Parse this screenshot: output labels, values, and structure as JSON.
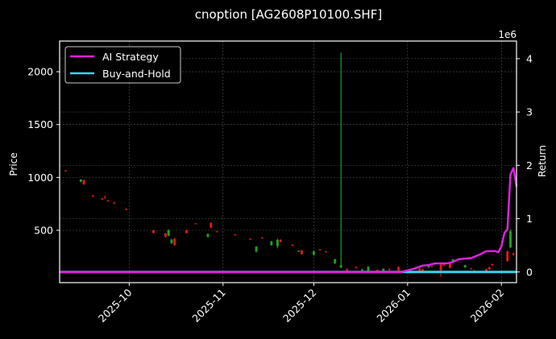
{
  "chart_data": {
    "type": "candlestick+line",
    "title": "cnoption [AG2608P10100.SHF]",
    "xlabel": "",
    "ylabel": "Price",
    "y2label": "Return",
    "y2_offset_label": "1e6",
    "x_ticks": [
      "2025-10",
      "2025-11",
      "2025-12",
      "2026-01",
      "2026-02"
    ],
    "y_ticks": [
      500,
      1000,
      1500,
      2000
    ],
    "y2_ticks": [
      0,
      1,
      2,
      3,
      4
    ],
    "ylim": [
      5,
      2290
    ],
    "y2lim": [
      -0.2,
      4.33
    ],
    "xlim": [
      "2025-09-08",
      "2026-02-06"
    ],
    "grid": true,
    "legend_position": "upper left",
    "legend": [
      {
        "label": "AI Strategy",
        "color": "#e020e0"
      },
      {
        "label": "Buy-and-Hold",
        "color": "#30d8e8"
      }
    ],
    "colors": {
      "background": "#000000",
      "up": "#1fa01f",
      "down": "#e01818",
      "ai_strategy": "#e020e0",
      "buy_and_hold": "#30d8e8",
      "grid": "#555555",
      "frame": "#ffffff"
    },
    "candles": [
      {
        "date": "2025-09-10",
        "open": 1065,
        "high": 1070,
        "low": 1060,
        "close": 1062
      },
      {
        "date": "2025-09-15",
        "open": 960,
        "high": 985,
        "low": 955,
        "close": 980
      },
      {
        "date": "2025-09-16",
        "open": 975,
        "high": 980,
        "low": 930,
        "close": 935
      },
      {
        "date": "2025-09-19",
        "open": 830,
        "high": 835,
        "low": 815,
        "close": 820
      },
      {
        "date": "2025-09-22",
        "open": 800,
        "high": 805,
        "low": 790,
        "close": 795
      },
      {
        "date": "2025-09-23",
        "open": 810,
        "high": 830,
        "low": 805,
        "close": 808
      },
      {
        "date": "2025-09-24",
        "open": 780,
        "high": 790,
        "low": 770,
        "close": 775
      },
      {
        "date": "2025-09-26",
        "open": 760,
        "high": 770,
        "low": 752,
        "close": 758
      },
      {
        "date": "2025-09-30",
        "open": 700,
        "high": 705,
        "low": 690,
        "close": 695
      },
      {
        "date": "2025-10-09",
        "open": 500,
        "high": 505,
        "low": 470,
        "close": 475
      },
      {
        "date": "2025-10-13",
        "open": 470,
        "high": 475,
        "low": 430,
        "close": 440
      },
      {
        "date": "2025-10-14",
        "open": 450,
        "high": 510,
        "low": 445,
        "close": 500
      },
      {
        "date": "2025-10-15",
        "open": 380,
        "high": 420,
        "low": 370,
        "close": 410
      },
      {
        "date": "2025-10-16",
        "open": 420,
        "high": 430,
        "low": 355,
        "close": 360
      },
      {
        "date": "2025-10-20",
        "open": 500,
        "high": 505,
        "low": 470,
        "close": 475
      },
      {
        "date": "2025-10-23",
        "open": 565,
        "high": 570,
        "low": 560,
        "close": 562
      },
      {
        "date": "2025-10-27",
        "open": 440,
        "high": 470,
        "low": 430,
        "close": 465
      },
      {
        "date": "2025-10-28",
        "open": 570,
        "high": 575,
        "low": 520,
        "close": 525
      },
      {
        "date": "2025-10-30",
        "open": 490,
        "high": 495,
        "low": 480,
        "close": 485
      },
      {
        "date": "2025-11-05",
        "open": 460,
        "high": 465,
        "low": 450,
        "close": 455
      },
      {
        "date": "2025-11-10",
        "open": 420,
        "high": 425,
        "low": 410,
        "close": 415
      },
      {
        "date": "2025-11-12",
        "open": 300,
        "high": 350,
        "low": 290,
        "close": 345
      },
      {
        "date": "2025-11-14",
        "open": 430,
        "high": 435,
        "low": 425,
        "close": 428
      },
      {
        "date": "2025-11-17",
        "open": 360,
        "high": 400,
        "low": 355,
        "close": 395
      },
      {
        "date": "2025-11-19",
        "open": 350,
        "high": 420,
        "low": 330,
        "close": 410
      },
      {
        "date": "2025-11-20",
        "open": 410,
        "high": 415,
        "low": 385,
        "close": 390
      },
      {
        "date": "2025-11-24",
        "open": 360,
        "high": 370,
        "low": 350,
        "close": 355
      },
      {
        "date": "2025-11-26",
        "open": 300,
        "high": 310,
        "low": 295,
        "close": 305
      },
      {
        "date": "2025-11-27",
        "open": 310,
        "high": 315,
        "low": 270,
        "close": 275
      },
      {
        "date": "2025-12-01",
        "open": 270,
        "high": 310,
        "low": 260,
        "close": 300
      },
      {
        "date": "2025-12-03",
        "open": 320,
        "high": 325,
        "low": 310,
        "close": 315
      },
      {
        "date": "2025-12-05",
        "open": 300,
        "high": 305,
        "low": 290,
        "close": 295
      },
      {
        "date": "2025-12-08",
        "open": 190,
        "high": 230,
        "low": 180,
        "close": 225
      },
      {
        "date": "2025-12-10",
        "open": 150,
        "high": 2180,
        "low": 140,
        "close": 170
      },
      {
        "date": "2025-12-12",
        "open": 130,
        "high": 140,
        "low": 100,
        "close": 105
      },
      {
        "date": "2025-12-15",
        "open": 150,
        "high": 160,
        "low": 140,
        "close": 145
      },
      {
        "date": "2025-12-17",
        "open": 120,
        "high": 135,
        "low": 115,
        "close": 130
      },
      {
        "date": "2025-12-19",
        "open": 115,
        "high": 160,
        "low": 110,
        "close": 155
      },
      {
        "date": "2025-12-22",
        "open": 125,
        "high": 130,
        "low": 110,
        "close": 115
      },
      {
        "date": "2025-12-24",
        "open": 110,
        "high": 140,
        "low": 105,
        "close": 135
      },
      {
        "date": "2025-12-26",
        "open": 130,
        "high": 140,
        "low": 120,
        "close": 125
      },
      {
        "date": "2025-12-29",
        "open": 150,
        "high": 160,
        "low": 115,
        "close": 120
      },
      {
        "date": "2026-01-05",
        "open": 140,
        "high": 145,
        "low": 110,
        "close": 115
      },
      {
        "date": "2026-01-06",
        "open": 130,
        "high": 135,
        "low": 100,
        "close": 110
      },
      {
        "date": "2026-01-08",
        "open": 150,
        "high": 170,
        "low": 145,
        "close": 165
      },
      {
        "date": "2026-01-09",
        "open": 160,
        "high": 165,
        "low": 150,
        "close": 155
      },
      {
        "date": "2026-01-12",
        "open": 180,
        "high": 185,
        "low": 60,
        "close": 120
      },
      {
        "date": "2026-01-13",
        "open": 175,
        "high": 180,
        "low": 165,
        "close": 170
      },
      {
        "date": "2026-01-15",
        "open": 190,
        "high": 195,
        "low": 140,
        "close": 145
      },
      {
        "date": "2026-01-16",
        "open": 195,
        "high": 230,
        "low": 190,
        "close": 225
      },
      {
        "date": "2026-01-20",
        "open": 150,
        "high": 175,
        "low": 145,
        "close": 170
      },
      {
        "date": "2026-01-22",
        "open": 140,
        "high": 145,
        "low": 130,
        "close": 135
      },
      {
        "date": "2026-01-23",
        "open": 120,
        "high": 125,
        "low": 110,
        "close": 115
      },
      {
        "date": "2026-01-27",
        "open": 130,
        "high": 135,
        "low": 110,
        "close": 115
      },
      {
        "date": "2026-01-28",
        "open": 150,
        "high": 155,
        "low": 125,
        "close": 130
      },
      {
        "date": "2026-01-29",
        "open": 180,
        "high": 185,
        "low": 165,
        "close": 170
      },
      {
        "date": "2026-02-03",
        "open": 300,
        "high": 310,
        "low": 200,
        "close": 210
      },
      {
        "date": "2026-02-04",
        "open": 340,
        "high": 510,
        "low": 330,
        "close": 490
      },
      {
        "date": "2026-02-05",
        "open": 280,
        "high": 290,
        "low": 260,
        "close": 270
      }
    ],
    "series": [
      {
        "name": "AI Strategy",
        "axis": "right",
        "unit": "1e6",
        "points": [
          {
            "date": "2025-12-30",
            "value": 0.0
          },
          {
            "date": "2026-01-03",
            "value": 0.06
          },
          {
            "date": "2026-01-06",
            "value": 0.12
          },
          {
            "date": "2026-01-08",
            "value": 0.13
          },
          {
            "date": "2026-01-10",
            "value": 0.16
          },
          {
            "date": "2026-01-14",
            "value": 0.16
          },
          {
            "date": "2026-01-16",
            "value": 0.19
          },
          {
            "date": "2026-01-18",
            "value": 0.24
          },
          {
            "date": "2026-01-22",
            "value": 0.26
          },
          {
            "date": "2026-01-25",
            "value": 0.33
          },
          {
            "date": "2026-01-27",
            "value": 0.39
          },
          {
            "date": "2026-01-30",
            "value": 0.39
          },
          {
            "date": "2026-01-31",
            "value": 0.37
          },
          {
            "date": "2026-02-01",
            "value": 0.48
          },
          {
            "date": "2026-02-02",
            "value": 0.73
          },
          {
            "date": "2026-02-03",
            "value": 0.8
          },
          {
            "date": "2026-02-04",
            "value": 1.83
          },
          {
            "date": "2026-02-05",
            "value": 1.95
          },
          {
            "date": "2026-02-06",
            "value": 1.6
          }
        ],
        "flat_before": {
          "from": "2025-09-08",
          "to": "2025-12-30",
          "value": 0.0
        }
      },
      {
        "name": "Buy-and-Hold",
        "axis": "right",
        "unit": "1e6",
        "points": [
          {
            "date": "2025-09-08",
            "value": 0.0
          },
          {
            "date": "2026-02-06",
            "value": 0.0
          }
        ]
      }
    ]
  }
}
